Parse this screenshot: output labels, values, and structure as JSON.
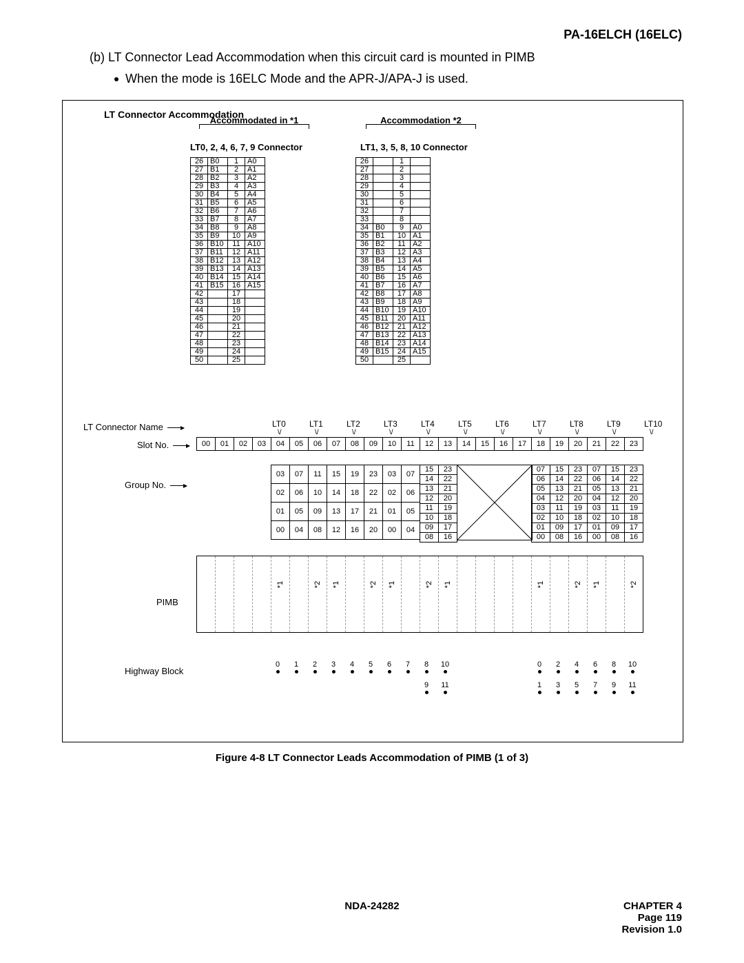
{
  "header_model": "PA-16ELCH (16ELC)",
  "para_b": "(b)  LT Connector Lead Accommodation when this circuit card is mounted in PIMB",
  "para_bullet": "When the mode is 16ELC Mode and the APR-J/APA-J is used.",
  "lt_title": "LT Connector Accommodation",
  "acc1": "Accommodated in *1",
  "acc2": "Accommodation *2",
  "sub1": "LT0, 2, 4, 6, 7, 9 Connector",
  "sub2": "LT1, 3, 5, 8, 10 Connector",
  "pin_left": [
    [
      "26",
      "B0",
      "1",
      "A0"
    ],
    [
      "27",
      "B1",
      "2",
      "A1"
    ],
    [
      "28",
      "B2",
      "3",
      "A2"
    ],
    [
      "29",
      "B3",
      "4",
      "A3"
    ],
    [
      "30",
      "B4",
      "5",
      "A4"
    ],
    [
      "31",
      "B5",
      "6",
      "A5"
    ],
    [
      "32",
      "B6",
      "7",
      "A6"
    ],
    [
      "33",
      "B7",
      "8",
      "A7"
    ],
    [
      "34",
      "B8",
      "9",
      "A8"
    ],
    [
      "35",
      "B9",
      "10",
      "A9"
    ],
    [
      "36",
      "B10",
      "11",
      "A10"
    ],
    [
      "37",
      "B11",
      "12",
      "A11"
    ],
    [
      "38",
      "B12",
      "13",
      "A12"
    ],
    [
      "39",
      "B13",
      "14",
      "A13"
    ],
    [
      "40",
      "B14",
      "15",
      "A14"
    ],
    [
      "41",
      "B15",
      "16",
      "A15"
    ],
    [
      "42",
      "",
      "17",
      ""
    ],
    [
      "43",
      "",
      "18",
      ""
    ],
    [
      "44",
      "",
      "19",
      ""
    ],
    [
      "45",
      "",
      "20",
      ""
    ],
    [
      "46",
      "",
      "21",
      ""
    ],
    [
      "47",
      "",
      "22",
      ""
    ],
    [
      "48",
      "",
      "23",
      ""
    ],
    [
      "49",
      "",
      "24",
      ""
    ],
    [
      "50",
      "",
      "25",
      ""
    ]
  ],
  "pin_right": [
    [
      "26",
      "",
      "1",
      ""
    ],
    [
      "27",
      "",
      "2",
      ""
    ],
    [
      "28",
      "",
      "3",
      ""
    ],
    [
      "29",
      "",
      "4",
      ""
    ],
    [
      "30",
      "",
      "5",
      ""
    ],
    [
      "31",
      "",
      "6",
      ""
    ],
    [
      "32",
      "",
      "7",
      ""
    ],
    [
      "33",
      "",
      "8",
      ""
    ],
    [
      "34",
      "B0",
      "9",
      "A0"
    ],
    [
      "35",
      "B1",
      "10",
      "A1"
    ],
    [
      "36",
      "B2",
      "11",
      "A2"
    ],
    [
      "37",
      "B3",
      "12",
      "A3"
    ],
    [
      "38",
      "B4",
      "13",
      "A4"
    ],
    [
      "39",
      "B5",
      "14",
      "A5"
    ],
    [
      "40",
      "B6",
      "15",
      "A6"
    ],
    [
      "41",
      "B7",
      "16",
      "A7"
    ],
    [
      "42",
      "B8",
      "17",
      "A8"
    ],
    [
      "43",
      "B9",
      "18",
      "A9"
    ],
    [
      "44",
      "B10",
      "19",
      "A10"
    ],
    [
      "45",
      "B11",
      "20",
      "A11"
    ],
    [
      "46",
      "B12",
      "21",
      "A12"
    ],
    [
      "47",
      "B13",
      "22",
      "A13"
    ],
    [
      "48",
      "B14",
      "23",
      "A14"
    ],
    [
      "49",
      "B15",
      "24",
      "A15"
    ],
    [
      "50",
      "",
      "25",
      ""
    ]
  ],
  "lbl_ltname": "LT Connector Name",
  "lbl_slot": "Slot No.",
  "lbl_group": "Group No.",
  "lbl_pimb": "PIMB",
  "lbl_hw": "Highway Block",
  "lt_names_a": [
    "LT0",
    "LT1",
    "LT2",
    "LT3",
    "LT4",
    "LT5",
    "LT6"
  ],
  "lt_names_b": [
    "LT7",
    "LT8",
    "LT9",
    "LT10"
  ],
  "slots": [
    "00",
    "01",
    "02",
    "03",
    "04",
    "05",
    "06",
    "07",
    "08",
    "09",
    "10",
    "11",
    "12",
    "13",
    "14",
    "15",
    "16",
    "17",
    "18",
    "19",
    "20",
    "21",
    "22",
    "23"
  ],
  "grpA": [
    [
      "03",
      "07",
      "11",
      "15",
      "19",
      "23",
      "03",
      "07"
    ],
    [
      "02",
      "06",
      "10",
      "14",
      "18",
      "22",
      "02",
      "06"
    ],
    [
      "01",
      "05",
      "09",
      "13",
      "17",
      "21",
      "01",
      "05"
    ],
    [
      "00",
      "04",
      "08",
      "12",
      "16",
      "20",
      "00",
      "04"
    ]
  ],
  "grpA_half": [
    [
      "15",
      "23"
    ],
    [
      "14",
      "22"
    ],
    [
      "13",
      "21"
    ],
    [
      "12",
      "20"
    ],
    [
      "11",
      "19"
    ],
    [
      "10",
      "18"
    ],
    [
      "09",
      "17"
    ],
    [
      "08",
      "16"
    ]
  ],
  "grpB": [
    [
      "07",
      "15",
      "23",
      "07",
      "15",
      "23"
    ],
    [
      "06",
      "14",
      "22",
      "06",
      "14",
      "22"
    ],
    [
      "05",
      "13",
      "21",
      "05",
      "13",
      "21"
    ],
    [
      "04",
      "12",
      "20",
      "04",
      "12",
      "20"
    ],
    [
      "03",
      "11",
      "19",
      "03",
      "11",
      "19"
    ],
    [
      "02",
      "10",
      "18",
      "02",
      "10",
      "18"
    ],
    [
      "01",
      "09",
      "17",
      "01",
      "09",
      "17"
    ],
    [
      "00",
      "08",
      "16",
      "00",
      "08",
      "16"
    ]
  ],
  "stars": [
    "",
    "",
    "",
    "",
    "*1",
    "",
    "*2",
    "*1",
    "",
    "*2",
    "*1",
    "",
    "*2",
    "*1",
    "",
    "",
    "",
    "",
    "*1",
    "",
    "*2",
    "*1",
    "",
    "*2"
  ],
  "hw_a": [
    [
      "0",
      "1",
      "2",
      "3",
      "4",
      "5",
      "6",
      "7",
      "8",
      "10"
    ],
    [
      "",
      "",
      "",
      "",
      "",
      "",
      "",
      "",
      "9",
      "11"
    ]
  ],
  "hw_b": [
    [
      "0",
      "2",
      "4",
      "6",
      "8",
      "10"
    ],
    [
      "1",
      "3",
      "5",
      "7",
      "9",
      "11"
    ]
  ],
  "figcap": "Figure 4-8   LT Connector Leads Accommodation of PIMB (1 of 3)",
  "doc": "NDA-24282",
  "chapter": "CHAPTER 4",
  "page": "Page 119",
  "rev": "Revision 1.0"
}
